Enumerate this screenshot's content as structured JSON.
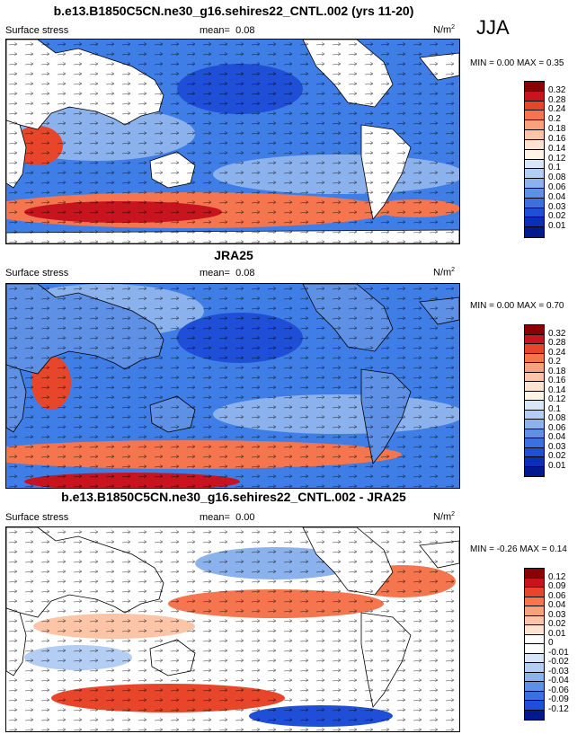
{
  "season": "JJA",
  "panels": [
    {
      "title": "b.e13.B1850C5CN.ne30_g16.sehires22_CNTL.002 (yrs 11-20)",
      "variable": "Surface stress",
      "mean_label": "mean=",
      "mean_value": "0.08",
      "units": "N/m",
      "units_sup": "2",
      "minmax": "MIN =  0.00 MAX =  0.35",
      "levels": [
        "0.32",
        "0.28",
        "0.24",
        "0.2",
        "0.18",
        "0.16",
        "0.14",
        "0.12",
        "0.1",
        "0.08",
        "0.06",
        "0.04",
        "0.03",
        "0.02",
        "0.01"
      ],
      "colors": [
        "#8b0000",
        "#c8141e",
        "#e8462a",
        "#f4754e",
        "#f9a07c",
        "#fcc5a8",
        "#fde3d0",
        "#fff4e6",
        "#d8e6f8",
        "#b3cdf3",
        "#8bb2ec",
        "#5e90e6",
        "#3c6fe0",
        "#1f4fd6",
        "#0c2fb8",
        "#001a8e"
      ],
      "base": "#3f7ee6"
    },
    {
      "title": "JRA25",
      "variable": "Surface stress",
      "mean_label": "mean=",
      "mean_value": "0.08",
      "units": "N/m",
      "units_sup": "2",
      "minmax": "MIN =  0.00 MAX =  0.70",
      "levels": [
        "0.32",
        "0.28",
        "0.24",
        "0.2",
        "0.18",
        "0.16",
        "0.14",
        "0.12",
        "0.1",
        "0.08",
        "0.06",
        "0.04",
        "0.03",
        "0.02",
        "0.01"
      ],
      "colors": [
        "#8b0000",
        "#c8141e",
        "#e8462a",
        "#f4754e",
        "#f9a07c",
        "#fcc5a8",
        "#fde3d0",
        "#fff4e6",
        "#d8e6f8",
        "#b3cdf3",
        "#8bb2ec",
        "#5e90e6",
        "#3c6fe0",
        "#1f4fd6",
        "#0c2fb8",
        "#001a8e"
      ],
      "base": "#3f7ee6"
    },
    {
      "title": "b.e13.B1850C5CN.ne30_g16.sehires22_CNTL.002 - JRA25",
      "variable": "Surface stress",
      "mean_label": "mean=",
      "mean_value": "0.00",
      "units": "N/m",
      "units_sup": "2",
      "minmax": "MIN = -0.26 MAX =  0.14",
      "levels": [
        "0.12",
        "0.09",
        "0.06",
        "0.04",
        "0.03",
        "0.02",
        "0.01",
        "0",
        "-0.01",
        "-0.02",
        "-0.03",
        "-0.04",
        "-0.06",
        "-0.09",
        "-0.12"
      ],
      "colors": [
        "#8b0000",
        "#c8141e",
        "#e8462a",
        "#f4754e",
        "#f9a07c",
        "#fcc5a8",
        "#fde3d0",
        "#ffffff",
        "#ffffff",
        "#d8e6f8",
        "#b3cdf3",
        "#8bb2ec",
        "#5e90e6",
        "#3c6fe0",
        "#1f4fd6",
        "#001a8e"
      ],
      "base": "#ffffff"
    }
  ]
}
